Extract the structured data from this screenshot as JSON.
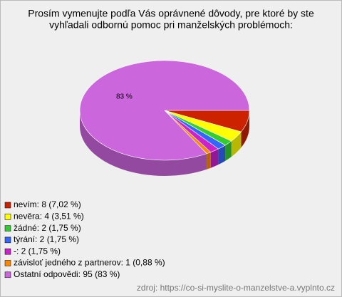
{
  "chart_data": {
    "type": "pie3d",
    "title": [
      "Prosím vymenujte podľa Vás oprávnené dôvody, pre ktoré by ste",
      "vyhľadali odbornú pomoc pri manželských problémoch:"
    ],
    "categories": [
      "nevím: 8 (7,02 %)",
      "nevěra: 4 (3,51 %)",
      "žádné: 2 (1,75 %)",
      "týrání: 2 (1,75 %)",
      "-: 2 (1,75 %)",
      "závisloť jedného z partnerov: 1 (0,88 %)",
      "Ostatní odpovědi: 95 (83 %)"
    ],
    "values": [
      7.02,
      3.51,
      1.75,
      1.75,
      1.75,
      0.88,
      83
    ],
    "value_labels": [
      null,
      null,
      null,
      null,
      null,
      null,
      "83 %"
    ],
    "colors": [
      "#cc2200",
      "#ffff00",
      "#33cc33",
      "#3366ff",
      "#cc22cc",
      "#ff8800",
      "#cc66dd"
    ],
    "source": "zdroj: https://co-si-myslite-o-manzelstve-a.vyplnto.cz"
  }
}
